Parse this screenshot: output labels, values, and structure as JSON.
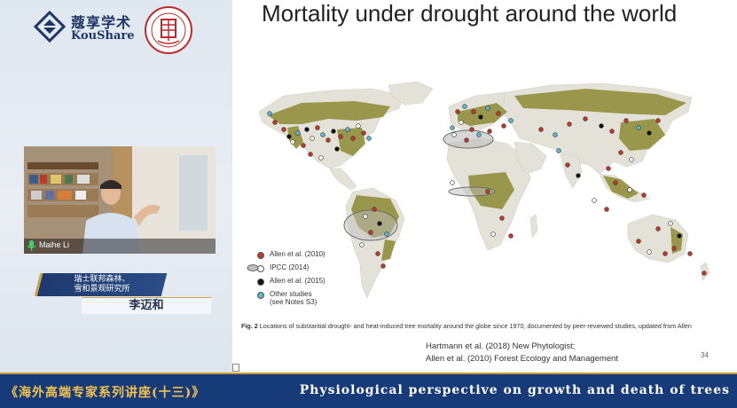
{
  "branding": {
    "kou_cn": "蔻享学术",
    "kou_en": "KouShare"
  },
  "video": {
    "participant_name": "Maihe Li"
  },
  "speaker": {
    "institute_line1": "瑞士联邦森林、",
    "institute_line2": "雪和景观研究所",
    "name": "李迈和"
  },
  "slide": {
    "title": "Mortality under drought around the world",
    "legend": [
      {
        "label": "Allen et al. (2010)",
        "color": "#c0392b",
        "shape": "dot"
      },
      {
        "label": "IPCC (2014)",
        "color": "#ffffff",
        "shape": "dot"
      },
      {
        "label": "Allen et al. (2015)",
        "color": "#111111",
        "shape": "dot"
      },
      {
        "label": "Other studies",
        "label2": "(see Notes S3)",
        "color": "#5db6d4",
        "shape": "dot"
      }
    ],
    "caption_fig": "Fig. 2",
    "caption_text": "Locations of substantial drought- and heat-induced tree mortality around the globe since 1970, documented by peer-reviewed studies, updated from Allen",
    "ref1": "Hartmann et al. (2018) New Phytologist;",
    "ref2": "Allen et al. (2010) Forest Ecology and Management",
    "page_number": "34"
  },
  "footer": {
    "series_title": "《海外高端专家系列讲座(十三)》",
    "talk_title": "Physiological perspective on growth and death of trees"
  },
  "colors": {
    "footer_bg": "#173a78",
    "footer_accent": "#f2c250",
    "forest": "#8d8a34"
  }
}
